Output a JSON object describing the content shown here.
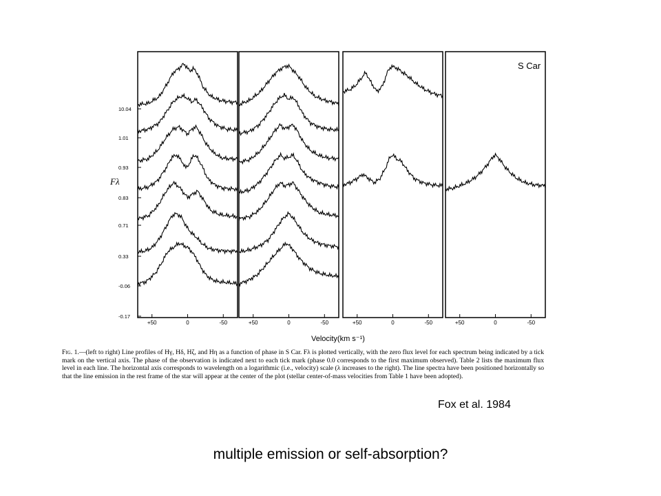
{
  "figure": {
    "star_label": "S Car",
    "y_axis_label": "Fλ",
    "x_axis_label": "Velocity(km s⁻¹)",
    "caption_fig": "Fig. 1.",
    "caption_text": "—(left to right) Line profiles of Hγ, Hδ, Hζ, and Hη as a function of phase in S Car. Fλ is plotted vertically, with the zero flux level for each spectrum being indicated by a tick mark on the vertical axis. The phase of the observation is indicated next to each tick mark (phase 0.0 corresponds to the first maximum observed). Table 2 lists the maximum flux level in each line. The horizontal axis corresponds to wavelength on a logarithmic (i.e., velocity) scale (λ increases to the right). The line spectra have been positioned horizontally so that the line emission in the rest frame of the star will appear at the center of the plot (stellar center-of-mass velocities from Table 1 have been adopted).",
    "credit": "Fox et al. 1984",
    "question": "multiple emission or self-absorption?"
  },
  "chart_data": {
    "type": "line",
    "title": "",
    "xlabel": "Velocity(km s⁻¹)",
    "ylabel": "Fλ",
    "phase_ticks": [
      "10.04",
      "1.01",
      "0.93",
      "0.83",
      "0.71",
      "0.33",
      "-0.06",
      "-0.17"
    ],
    "x_tick_labels": [
      "+50",
      "0",
      "-50"
    ],
    "x_tick_values": [
      50,
      0,
      -50
    ],
    "xlim": [
      70,
      -70
    ],
    "panels": [
      {
        "name": "Hγ",
        "series": [
          {
            "phase": "10.04",
            "baseline": 10.04,
            "x": [
              70,
              55,
              40,
              30,
              20,
              12,
              6,
              2,
              -3,
              -8,
              -14,
              -22,
              -32,
              -45,
              -60,
              -70
            ],
            "y": [
              0.1,
              0.13,
              0.28,
              0.55,
              0.85,
              0.95,
              1.05,
              1.0,
              0.88,
              0.95,
              0.82,
              0.5,
              0.3,
              0.2,
              0.16,
              0.15
            ]
          },
          {
            "phase": "1.01",
            "baseline": 1.01,
            "x": [
              70,
              55,
              40,
              30,
              20,
              12,
              6,
              0,
              -6,
              -12,
              -20,
              -30,
              -42,
              -55,
              -70
            ],
            "y": [
              0.15,
              0.2,
              0.35,
              0.6,
              0.85,
              0.95,
              0.98,
              0.92,
              0.84,
              0.9,
              0.72,
              0.45,
              0.28,
              0.2,
              0.18
            ]
          },
          {
            "phase": "0.93",
            "baseline": 0.93,
            "x": [
              70,
              55,
              42,
              30,
              20,
              12,
              5,
              0,
              -6,
              -12,
              -18,
              -26,
              -36,
              -48,
              -60,
              -70
            ],
            "y": [
              0.15,
              0.2,
              0.4,
              0.7,
              0.9,
              0.95,
              0.85,
              0.78,
              0.9,
              0.95,
              0.8,
              0.55,
              0.35,
              0.22,
              0.2,
              0.2
            ]
          },
          {
            "phase": "0.83",
            "baseline": 0.83,
            "x": [
              70,
              55,
              42,
              30,
              22,
              15,
              8,
              3,
              -3,
              -8,
              -13,
              -20,
              -28,
              -38,
              -50,
              -70
            ],
            "y": [
              0.2,
              0.25,
              0.4,
              0.7,
              0.95,
              1.0,
              0.85,
              0.7,
              0.8,
              1.0,
              0.95,
              0.75,
              0.45,
              0.3,
              0.22,
              0.2
            ]
          },
          {
            "phase": "0.71",
            "baseline": 0.71,
            "x": [
              70,
              55,
              42,
              30,
              20,
              12,
              5,
              0,
              -6,
              -14,
              -22,
              -32,
              -45,
              -58,
              -70
            ],
            "y": [
              0.15,
              0.22,
              0.45,
              0.8,
              1.0,
              0.9,
              0.75,
              0.65,
              0.72,
              0.8,
              0.6,
              0.35,
              0.25,
              0.22,
              0.2
            ]
          },
          {
            "phase": "0.33",
            "baseline": 0.33,
            "x": [
              70,
              60,
              50,
              40,
              30,
              22,
              15,
              8,
              2,
              -5,
              -12,
              -20,
              -30,
              -42,
              -55,
              -70
            ],
            "y": [
              0.1,
              0.12,
              0.2,
              0.4,
              0.7,
              0.95,
              1.0,
              0.9,
              0.7,
              0.55,
              0.45,
              0.3,
              0.18,
              0.14,
              0.12,
              0.12
            ]
          },
          {
            "phase": "-0.06",
            "baseline": -0.06,
            "x": [
              70,
              58,
              45,
              36,
              28,
              20,
              12,
              6,
              0,
              -6,
              -12,
              -18,
              -26,
              -34,
              -42,
              -55,
              -70
            ],
            "y": [
              0.05,
              0.1,
              0.3,
              0.55,
              0.8,
              0.9,
              1.0,
              0.95,
              0.9,
              0.8,
              0.65,
              0.45,
              0.25,
              0.15,
              0.1,
              0.08,
              0.05
            ]
          }
        ]
      },
      {
        "name": "Hδ",
        "series": [
          {
            "phase": "10.04",
            "baseline": 10.04,
            "x": [
              70,
              55,
              40,
              28,
              18,
              10,
              4,
              0,
              -6,
              -14,
              -24,
              -36,
              -50,
              -62,
              -70
            ],
            "y": [
              0.1,
              0.2,
              0.4,
              0.65,
              0.85,
              0.95,
              1.0,
              1.0,
              0.9,
              0.75,
              0.5,
              0.3,
              0.2,
              0.15,
              0.12
            ]
          },
          {
            "phase": "1.01",
            "baseline": 1.01,
            "x": [
              70,
              55,
              42,
              30,
              20,
              12,
              6,
              0,
              -6,
              -12,
              -20,
              -30,
              -42,
              -55,
              -70
            ],
            "y": [
              0.1,
              0.15,
              0.3,
              0.55,
              0.8,
              0.95,
              1.0,
              0.9,
              0.95,
              0.8,
              0.55,
              0.35,
              0.25,
              0.2,
              0.18
            ]
          },
          {
            "phase": "0.93",
            "baseline": 0.93,
            "x": [
              70,
              55,
              42,
              30,
              20,
              12,
              6,
              0,
              -6,
              -12,
              -20,
              -30,
              -42,
              -55,
              -70
            ],
            "y": [
              0.12,
              0.18,
              0.35,
              0.6,
              0.85,
              1.0,
              0.9,
              0.95,
              1.0,
              0.85,
              0.6,
              0.4,
              0.28,
              0.22,
              0.2
            ]
          },
          {
            "phase": "0.83",
            "baseline": 0.83,
            "x": [
              70,
              55,
              42,
              30,
              20,
              12,
              6,
              0,
              -6,
              -12,
              -20,
              -30,
              -42,
              -55,
              -70
            ],
            "y": [
              0.12,
              0.18,
              0.35,
              0.6,
              0.85,
              1.0,
              0.92,
              0.95,
              1.0,
              0.85,
              0.6,
              0.45,
              0.35,
              0.28,
              0.25
            ]
          },
          {
            "phase": "0.71",
            "baseline": 0.71,
            "x": [
              70,
              55,
              42,
              30,
              20,
              12,
              6,
              0,
              -6,
              -12,
              -20,
              -30,
              -42,
              -55,
              -70
            ],
            "y": [
              0.15,
              0.2,
              0.35,
              0.6,
              0.85,
              1.0,
              0.92,
              0.95,
              1.0,
              0.85,
              0.65,
              0.45,
              0.3,
              0.25,
              0.22
            ]
          },
          {
            "phase": "0.33",
            "baseline": 0.33,
            "x": [
              70,
              55,
              40,
              28,
              18,
              10,
              4,
              0,
              -6,
              -12,
              -20,
              -30,
              -42,
              -55,
              -70
            ],
            "y": [
              0.1,
              0.15,
              0.25,
              0.4,
              0.65,
              0.85,
              0.95,
              1.0,
              0.9,
              0.75,
              0.55,
              0.4,
              0.3,
              0.25,
              0.22
            ]
          },
          {
            "phase": "-0.06",
            "baseline": -0.06,
            "x": [
              70,
              58,
              45,
              34,
              24,
              16,
              10,
              4,
              0,
              -6,
              -12,
              -20,
              -30,
              -42,
              -55,
              -70
            ],
            "y": [
              0.05,
              0.12,
              0.25,
              0.45,
              0.65,
              0.8,
              0.9,
              1.0,
              0.95,
              0.85,
              0.7,
              0.55,
              0.4,
              0.3,
              0.25,
              0.22
            ]
          }
        ]
      },
      {
        "name": "Hζ",
        "series": [
          {
            "phase": "10.04",
            "baseline": 10.04,
            "x": [
              70,
              60,
              52,
              45,
              38,
              30,
              22,
              14,
              8,
              2,
              -6,
              -14,
              -22,
              -32,
              -45,
              -58,
              -70
            ],
            "y": [
              0.4,
              0.45,
              0.55,
              0.7,
              0.85,
              0.6,
              0.4,
              0.55,
              0.85,
              1.0,
              0.95,
              0.85,
              0.75,
              0.6,
              0.45,
              0.35,
              0.3
            ]
          },
          {
            "phase": "0.83",
            "baseline": 0.83,
            "x": [
              70,
              60,
              50,
              42,
              34,
              26,
              18,
              10,
              4,
              0,
              -6,
              -12,
              -20,
              -30,
              -42,
              -55,
              -70
            ],
            "y": [
              0.3,
              0.35,
              0.45,
              0.55,
              0.45,
              0.35,
              0.45,
              0.7,
              0.95,
              1.0,
              0.9,
              0.85,
              0.65,
              0.45,
              0.35,
              0.3,
              0.28
            ]
          }
        ]
      },
      {
        "name": "Hη",
        "series": [
          {
            "phase": "0.83",
            "baseline": 0.83,
            "x": [
              70,
              60,
              50,
              40,
              30,
              20,
              10,
              4,
              0,
              -6,
              -12,
              -20,
              -30,
              -42,
              -55,
              -70
            ],
            "y": [
              0.2,
              0.22,
              0.28,
              0.35,
              0.45,
              0.6,
              0.8,
              0.95,
              1.0,
              0.9,
              0.75,
              0.6,
              0.45,
              0.35,
              0.3,
              0.28
            ]
          }
        ]
      }
    ],
    "grid": false,
    "legend": "none"
  }
}
